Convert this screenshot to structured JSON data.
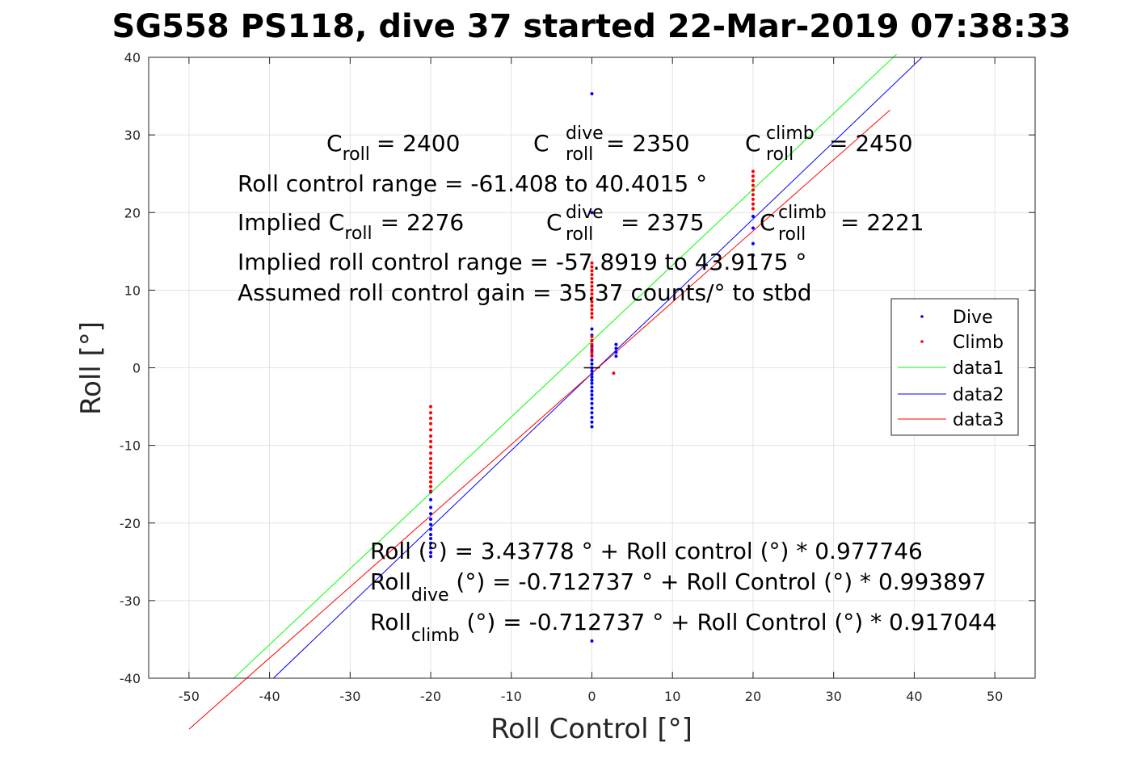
{
  "chart_data": {
    "type": "scatter",
    "title": "SG558 PS118, dive 37 started 22-Mar-2019 07:38:33",
    "xlabel": "Roll Control [°]",
    "ylabel": "Roll [°]",
    "xlim": [
      -55,
      55
    ],
    "ylim": [
      -40,
      40
    ],
    "xticks": [
      -50,
      -40,
      -30,
      -20,
      -10,
      0,
      10,
      20,
      30,
      40,
      50
    ],
    "yticks": [
      -40,
      -30,
      -20,
      -10,
      0,
      10,
      20,
      30,
      40
    ],
    "grid": true,
    "legend_position": "right",
    "legend": [
      "Dive",
      "Climb",
      "data1",
      "data2",
      "data3"
    ],
    "colors": {
      "dive": "#0000ff",
      "climb": "#ff0000",
      "data1": "#00ff00",
      "data2": "#0000ff",
      "data3": "#ff0000"
    },
    "series": [
      {
        "name": "Dive",
        "kind": "points",
        "color": "#0000ff",
        "points": [
          [
            0,
            35.3
          ],
          [
            0,
            -35.2
          ],
          [
            0,
            20.0
          ],
          [
            0,
            5.0
          ],
          [
            0,
            4.2
          ],
          [
            0,
            3.5
          ],
          [
            0,
            2.8
          ],
          [
            0,
            2.2
          ],
          [
            0,
            1.6
          ],
          [
            0,
            1.0
          ],
          [
            0,
            0.5
          ],
          [
            0,
            0.0
          ],
          [
            0,
            -0.4
          ],
          [
            0,
            -0.8
          ],
          [
            0,
            -1.2
          ],
          [
            0,
            -1.6
          ],
          [
            0,
            -2.0
          ],
          [
            0,
            -2.5
          ],
          [
            0,
            -3.0
          ],
          [
            0,
            -3.5
          ],
          [
            0,
            -4.0
          ],
          [
            0,
            -4.6
          ],
          [
            0,
            -5.2
          ],
          [
            0,
            -5.8
          ],
          [
            0,
            -6.4
          ],
          [
            0,
            -7.0
          ],
          [
            0,
            -7.6
          ],
          [
            3,
            3.0
          ],
          [
            3,
            2.5
          ],
          [
            3,
            2.0
          ],
          [
            3,
            1.5
          ],
          [
            -20,
            -16.0
          ],
          [
            -20,
            -17.0
          ],
          [
            -20,
            -18.0
          ],
          [
            -20,
            -18.8
          ],
          [
            -20,
            -19.5
          ],
          [
            -20,
            -20.2
          ],
          [
            -20,
            -20.8
          ],
          [
            -20,
            -21.5
          ],
          [
            -20,
            -22.0
          ],
          [
            -20,
            -22.6
          ],
          [
            -20,
            -23.2
          ],
          [
            -20,
            -23.8
          ],
          [
            -20,
            -24.3
          ],
          [
            20,
            18.0
          ],
          [
            20,
            16.0
          ],
          [
            20,
            19.5
          ],
          [
            20,
            14.5
          ]
        ]
      },
      {
        "name": "Climb",
        "kind": "points",
        "color": "#ff0000",
        "points": [
          [
            0,
            13.5
          ],
          [
            0,
            13.0
          ],
          [
            0,
            12.5
          ],
          [
            0,
            12.0
          ],
          [
            0,
            11.5
          ],
          [
            0,
            11.0
          ],
          [
            0,
            10.5
          ],
          [
            0,
            10.0
          ],
          [
            0,
            9.5
          ],
          [
            0,
            9.0
          ],
          [
            0,
            8.5
          ],
          [
            0,
            8.0
          ],
          [
            0,
            7.5
          ],
          [
            0,
            7.0
          ],
          [
            0,
            6.5
          ],
          [
            0,
            4.0
          ],
          [
            0,
            3.5
          ],
          [
            0,
            3.0
          ],
          [
            0,
            2.5
          ],
          [
            0,
            2.0
          ],
          [
            0,
            1.5
          ],
          [
            2.7,
            -0.7
          ],
          [
            -20,
            -5.0
          ],
          [
            -20,
            -5.8
          ],
          [
            -20,
            -6.5
          ],
          [
            -20,
            -7.2
          ],
          [
            -20,
            -8.0
          ],
          [
            -20,
            -8.8
          ],
          [
            -20,
            -9.5
          ],
          [
            -20,
            -10.2
          ],
          [
            -20,
            -11.0
          ],
          [
            -20,
            -11.7
          ],
          [
            -20,
            -12.3
          ],
          [
            -20,
            -12.9
          ],
          [
            -20,
            -13.5
          ],
          [
            -20,
            -14.1
          ],
          [
            -20,
            -14.7
          ],
          [
            -20,
            -15.3
          ],
          [
            -20,
            -15.9
          ],
          [
            20,
            25.3
          ],
          [
            20,
            24.7
          ],
          [
            20,
            24.1
          ],
          [
            20,
            23.5
          ],
          [
            20,
            22.9
          ],
          [
            20,
            22.3
          ],
          [
            20,
            21.7
          ],
          [
            20,
            21.1
          ],
          [
            20,
            20.5
          ]
        ]
      },
      {
        "name": "data1",
        "kind": "line",
        "color": "#00ff00",
        "intercept": 3.43778,
        "slope": 0.977746,
        "x_range": [
          -44.5,
          37.8
        ]
      },
      {
        "name": "data2",
        "kind": "line",
        "color": "#0000ff",
        "intercept": -0.712737,
        "slope": 0.993897,
        "x_range": [
          -39.5,
          41.0
        ]
      },
      {
        "name": "data3",
        "kind": "line",
        "color": "#ff0000",
        "intercept": -0.712737,
        "slope": 0.917044,
        "x_range": [
          -50.0,
          37.0
        ]
      }
    ],
    "annotations": {
      "croll": {
        "base": "C",
        "sub": "roll",
        "value": "= 2400"
      },
      "croll_dive": {
        "base": "C",
        "sup": "dive",
        "sub": "roll",
        "value": "= 2350"
      },
      "croll_climb": {
        "base": "C",
        "sup": "climb",
        "sub": "roll",
        "value": "= 2450"
      },
      "range": "Roll control range = -61.408 to 40.4015 °",
      "implied_croll": {
        "prefix": "Implied C",
        "sub": "roll",
        "value": "= 2276"
      },
      "implied_croll_dive": {
        "base": "C",
        "sup": "dive",
        "sub": "roll",
        "value": "= 2375"
      },
      "implied_croll_climb": {
        "base": "C",
        "sup": "climb",
        "sub": "roll",
        "value": "= 2221"
      },
      "implied_range": "Implied roll control range = -57.8919 to 43.9175 °",
      "gain": "Assumed roll control gain = 35.37 counts/° to stbd",
      "fit": "Roll (°) = 3.43778 ° + Roll control (°) * 0.977746",
      "fit_dive": {
        "base": "Roll",
        "sub": "dive",
        "rest": " (°) = -0.712737 ° + Roll Control (°) * 0.993897"
      },
      "fit_climb": {
        "base": "Roll",
        "sub": "climb",
        "rest": " (°) = -0.712737 ° + Roll Control (°) * 0.917044"
      }
    }
  }
}
